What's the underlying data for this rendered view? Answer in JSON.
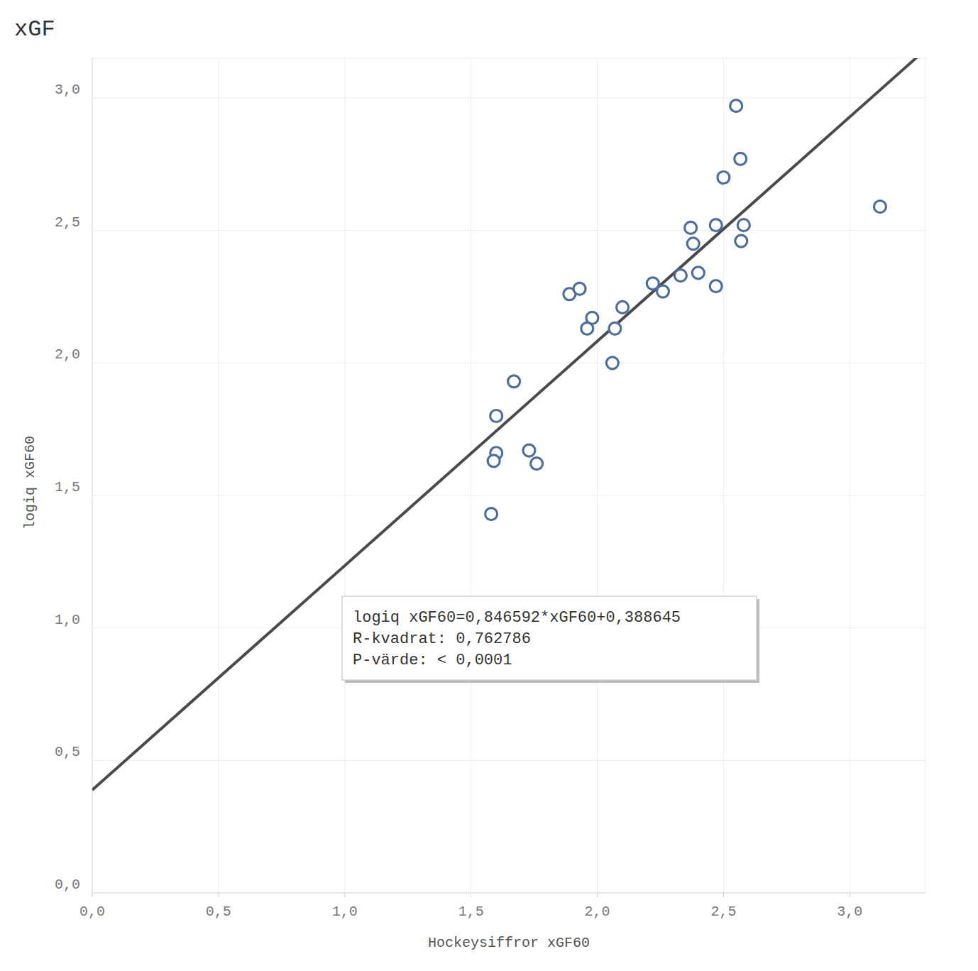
{
  "chart_data": {
    "type": "scatter",
    "title": "xGF",
    "x_label": "Hockeysiffror xGF60",
    "y_label": "logiq xGF60",
    "x": [
      2.55,
      2.567,
      2.5,
      3.12,
      2.37,
      2.47,
      2.58,
      2.38,
      2.57,
      2.33,
      2.4,
      2.22,
      2.26,
      2.47,
      1.89,
      1.93,
      1.98,
      2.1,
      1.96,
      2.07,
      2.06,
      1.67,
      1.6,
      1.6,
      1.59,
      1.73,
      1.76,
      1.58
    ],
    "y": [
      2.97,
      2.77,
      2.7,
      2.59,
      2.51,
      2.52,
      2.52,
      2.45,
      2.46,
      2.33,
      2.34,
      2.3,
      2.27,
      2.29,
      2.26,
      2.28,
      2.17,
      2.21,
      2.13,
      2.13,
      2.0,
      1.93,
      1.8,
      1.66,
      1.63,
      1.67,
      1.62,
      1.43
    ],
    "color": "#4e6f9e",
    "marker": "circle",
    "trendline": {
      "slope": 0.846592,
      "intercept": 0.388645
    },
    "annotations": [
      "logiq xGF60=0,846592*xGF60+0,388645",
      "R-kvadrat: 0,762786",
      "P-värde: < 0,0001"
    ],
    "xlim": [
      0,
      3.3
    ],
    "ylim": [
      0,
      3.15
    ],
    "xticks": [
      {
        "value": 0,
        "label": "0,0"
      },
      {
        "value": 0.5,
        "label": "0,5"
      },
      {
        "value": 1,
        "label": "1,0"
      },
      {
        "value": 1.5,
        "label": "1,5"
      },
      {
        "value": 2,
        "label": "2,0"
      },
      {
        "value": 2.5,
        "label": "2,5"
      },
      {
        "value": 3,
        "label": "3,0"
      }
    ],
    "yticks": [
      {
        "value": 0,
        "label": "0,0"
      },
      {
        "value": 0.5,
        "label": "0,5"
      },
      {
        "value": 1,
        "label": "1,0"
      },
      {
        "value": 1.5,
        "label": "1,5"
      },
      {
        "value": 2,
        "label": "2,0"
      },
      {
        "value": 2.5,
        "label": "2,5"
      },
      {
        "value": 3,
        "label": "3,0"
      }
    ],
    "grid": true
  }
}
